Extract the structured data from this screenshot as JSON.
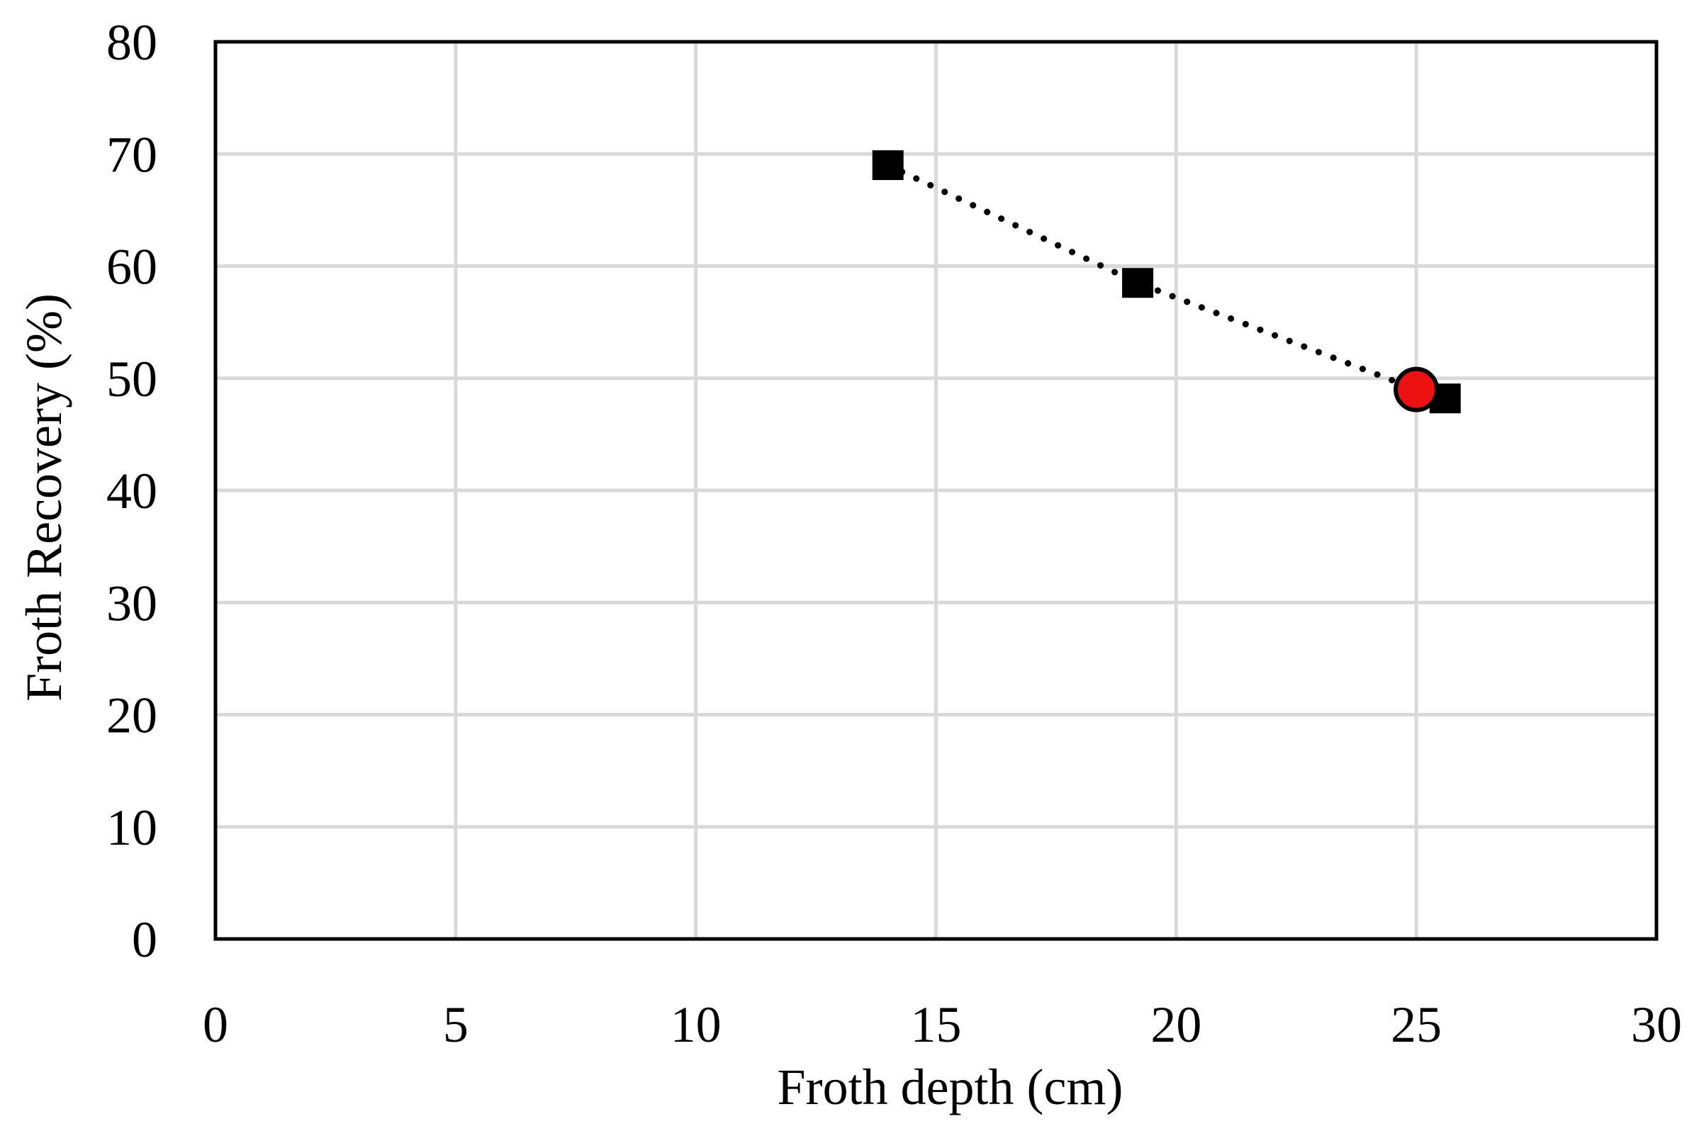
{
  "chart_data": {
    "type": "scatter",
    "title": "",
    "xlabel": "Froth depth (cm)",
    "ylabel": "Froth Recovery (%)",
    "xlim": [
      0,
      30
    ],
    "ylim": [
      0,
      80
    ],
    "xticks": [
      0,
      5,
      10,
      15,
      20,
      25,
      30
    ],
    "yticks": [
      0,
      10,
      20,
      30,
      40,
      50,
      60,
      70,
      80
    ],
    "grid": true,
    "series": [
      {
        "marker": "square",
        "color": "#000000",
        "points": [
          {
            "x": 14.0,
            "y": 69.0
          },
          {
            "x": 19.2,
            "y": 58.5
          },
          {
            "x": 25.6,
            "y": 48.2
          }
        ]
      },
      {
        "marker": "circle",
        "color": "#ee1111",
        "points": [
          {
            "x": 25.0,
            "y": 49.0
          }
        ]
      }
    ],
    "trendline": {
      "style": "dotted",
      "color": "#000000",
      "points": [
        {
          "x": 14.0,
          "y": 69.0
        },
        {
          "x": 19.2,
          "y": 58.5
        },
        {
          "x": 25.0,
          "y": 49.0
        },
        {
          "x": 25.6,
          "y": 48.2
        }
      ]
    }
  }
}
